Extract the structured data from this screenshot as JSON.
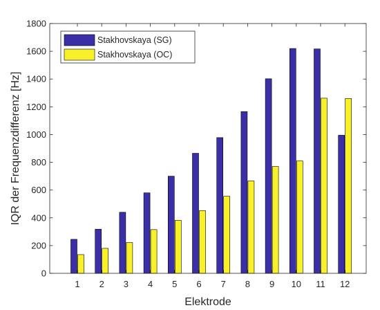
{
  "chart_data": {
    "type": "bar",
    "xlabel": "Elektrode",
    "ylabel": "IQR der Frequenzdifferenz [Hz]",
    "categories": [
      "1",
      "2",
      "3",
      "4",
      "5",
      "6",
      "7",
      "8",
      "9",
      "10",
      "11",
      "12"
    ],
    "ylim": [
      0,
      1800
    ],
    "yticks": [
      0,
      200,
      400,
      600,
      800,
      1000,
      1200,
      1400,
      1600,
      1800
    ],
    "grid": false,
    "legend_position": "top-left",
    "series": [
      {
        "name": "Stakhovskaya (SG)",
        "color": "#3a2fa6",
        "values": [
          245,
          318,
          440,
          580,
          700,
          865,
          978,
          1165,
          1402,
          1620,
          1617,
          995
        ]
      },
      {
        "name": "Stakhovskaya (OC)",
        "color": "#f7f02a",
        "values": [
          135,
          180,
          222,
          315,
          382,
          452,
          555,
          666,
          770,
          810,
          1262,
          1260
        ]
      }
    ]
  }
}
